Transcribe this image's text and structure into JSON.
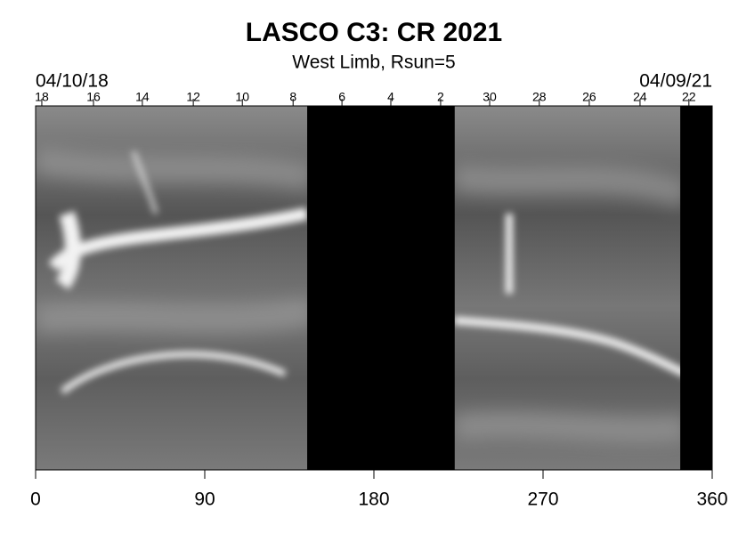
{
  "chart_data": {
    "type": "image",
    "title": "LASCO C3: CR 2021",
    "subtitle": "West Limb, Rsun=5",
    "start_date": "04/10/18",
    "end_date": "04/09/21",
    "xlim": [
      0,
      360
    ],
    "xticks": [
      0,
      90,
      180,
      270,
      360
    ],
    "top_ticks": [
      {
        "value": 3.3,
        "label": "18"
      },
      {
        "value": 30.8,
        "label": "16"
      },
      {
        "value": 56.8,
        "label": "14"
      },
      {
        "value": 83.9,
        "label": "12"
      },
      {
        "value": 110,
        "label": "10"
      },
      {
        "value": 137,
        "label": "8"
      },
      {
        "value": 163,
        "label": "6"
      },
      {
        "value": 189,
        "label": "4"
      },
      {
        "value": 215.5,
        "label": "2"
      },
      {
        "value": 241.6,
        "label": "30"
      },
      {
        "value": 268,
        "label": "28"
      },
      {
        "value": 294.6,
        "label": "26"
      },
      {
        "value": 321.6,
        "label": "24"
      },
      {
        "value": 347.6,
        "label": "22"
      }
    ],
    "data_gaps": [
      [
        144.5,
        223
      ],
      [
        343,
        360
      ]
    ]
  }
}
